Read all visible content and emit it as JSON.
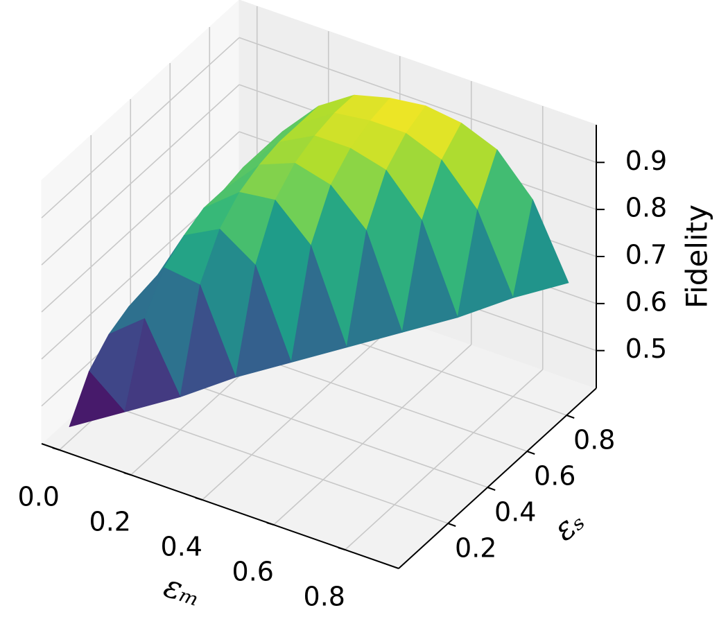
{
  "chart_data": {
    "type": "surface",
    "xlabel": "εₘ",
    "ylabel": "εₛ",
    "zlabel": "Fidelity",
    "x": [
      0.0,
      0.1,
      0.2,
      0.3,
      0.4,
      0.5,
      0.6,
      0.7,
      0.8,
      0.9
    ],
    "y": [
      0.0,
      0.1,
      0.2,
      0.3,
      0.4,
      0.5,
      0.6,
      0.7,
      0.8,
      0.9
    ],
    "z": [
      [
        0.45,
        null,
        null,
        null,
        null,
        null,
        null,
        null,
        null,
        null
      ],
      [
        0.53,
        0.47,
        null,
        null,
        null,
        null,
        null,
        null,
        null,
        null
      ],
      [
        0.57,
        0.63,
        0.49,
        null,
        null,
        null,
        null,
        null,
        null,
        null
      ],
      [
        0.59,
        0.7,
        0.69,
        0.52,
        null,
        null,
        null,
        null,
        null,
        null
      ],
      [
        0.59,
        0.73,
        0.77,
        0.72,
        0.54,
        null,
        null,
        null,
        null,
        null
      ],
      [
        0.6,
        0.75,
        0.81,
        0.82,
        0.75,
        0.56,
        null,
        null,
        null,
        null
      ],
      [
        0.6,
        0.75,
        0.83,
        0.86,
        0.84,
        0.77,
        0.58,
        null,
        null,
        null
      ],
      [
        0.6,
        0.76,
        0.84,
        0.88,
        0.88,
        0.86,
        0.78,
        0.6,
        null,
        null
      ],
      [
        0.6,
        0.76,
        0.84,
        0.89,
        0.9,
        0.9,
        0.87,
        0.79,
        0.63,
        null
      ],
      [
        0.6,
        0.76,
        0.84,
        0.89,
        0.91,
        0.92,
        0.91,
        0.88,
        0.8,
        0.65
      ]
    ],
    "colormap": "viridis",
    "xlim": [
      -0.05,
      0.95
    ],
    "ylim": [
      -0.05,
      0.95
    ],
    "zlim": [
      0.42,
      0.98
    ],
    "xticks": [
      {
        "value": 0,
        "label": "0.0"
      },
      0.2,
      0.4,
      0.6,
      0.8
    ],
    "yticks": [
      0.2,
      0.4,
      0.6,
      0.8
    ],
    "zticks": [
      0.5,
      0.6,
      0.7,
      0.8,
      0.9
    ],
    "grid": true
  }
}
